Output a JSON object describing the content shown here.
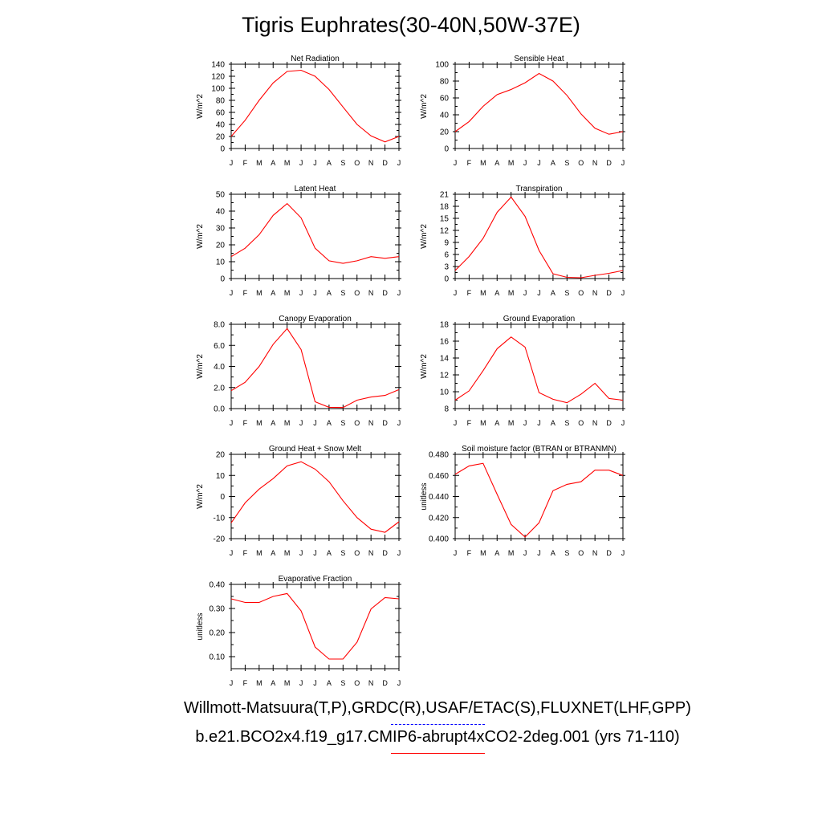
{
  "title": "Tigris Euphrates(30-40N,50W-37E)",
  "legend": {
    "observed_label": "Willmott-Matsuura(T,P),GRDC(R),USAF/ETAC(S),FLUXNET(LHF,GPP)",
    "observed_color": "#0000ff",
    "model_label": "b.e21.BCO2x4.f19_g17.CMIP6-abrupt4xCO2-2deg.001 (yrs 71-110)",
    "model_color": "#ff0000"
  },
  "chart_data": [
    {
      "type": "line",
      "title": "Net Radiation",
      "ylabel": "W/m^2",
      "categories": [
        "J",
        "F",
        "M",
        "A",
        "M",
        "J",
        "J",
        "A",
        "S",
        "O",
        "N",
        "D",
        "J"
      ],
      "ylim": [
        0,
        140
      ],
      "yticks": [
        "0",
        "20",
        "40",
        "60",
        "80",
        "100",
        "120",
        "140"
      ],
      "series": [
        {
          "values": [
            20,
            47,
            80,
            109,
            128,
            130,
            120,
            98,
            69,
            40,
            21,
            11,
            20
          ],
          "color": "#ff0000"
        }
      ]
    },
    {
      "type": "line",
      "title": "Sensible Heat",
      "ylabel": "W/m^2",
      "categories": [
        "J",
        "F",
        "M",
        "A",
        "M",
        "J",
        "J",
        "A",
        "S",
        "O",
        "N",
        "D",
        "J"
      ],
      "ylim": [
        0,
        100
      ],
      "yticks": [
        "0",
        "20",
        "40",
        "60",
        "80",
        "100"
      ],
      "series": [
        {
          "values": [
            20,
            32,
            50,
            64,
            70,
            78,
            89,
            80,
            63,
            41,
            24,
            17,
            20
          ],
          "color": "#ff0000"
        }
      ]
    },
    {
      "type": "line",
      "title": "Latent Heat",
      "ylabel": "W/m^2",
      "categories": [
        "J",
        "F",
        "M",
        "A",
        "M",
        "J",
        "J",
        "A",
        "S",
        "O",
        "N",
        "D",
        "J"
      ],
      "ylim": [
        0,
        50
      ],
      "yticks": [
        "0",
        "10",
        "20",
        "30",
        "40",
        "50"
      ],
      "series": [
        {
          "values": [
            13,
            18,
            26,
            37.5,
            44.5,
            36,
            18,
            10.5,
            9,
            10.5,
            13,
            12,
            13
          ],
          "color": "#ff0000"
        }
      ]
    },
    {
      "type": "line",
      "title": "Transpiration",
      "ylabel": "W/m^2",
      "categories": [
        "J",
        "F",
        "M",
        "A",
        "M",
        "J",
        "J",
        "A",
        "S",
        "O",
        "N",
        "D",
        "J"
      ],
      "ylim": [
        0,
        21
      ],
      "yticks": [
        "0",
        "3",
        "6",
        "9",
        "12",
        "15",
        "18",
        "21"
      ],
      "series": [
        {
          "values": [
            2,
            5.5,
            10,
            16.5,
            20.3,
            15.5,
            7,
            1.2,
            0.3,
            0.2,
            0.8,
            1.3,
            2
          ],
          "color": "#ff0000"
        }
      ]
    },
    {
      "type": "line",
      "title": "Canopy Evaporation",
      "ylabel": "W/m^2",
      "categories": [
        "J",
        "F",
        "M",
        "A",
        "M",
        "J",
        "J",
        "A",
        "S",
        "O",
        "N",
        "D",
        "J"
      ],
      "ylim": [
        0,
        8
      ],
      "yticks": [
        "0.0",
        "2.0",
        "4.0",
        "6.0",
        "8.0"
      ],
      "series": [
        {
          "values": [
            1.7,
            2.5,
            4.0,
            6.1,
            7.6,
            5.6,
            0.65,
            0.12,
            0.1,
            0.8,
            1.1,
            1.25,
            1.8
          ],
          "color": "#ff0000"
        }
      ]
    },
    {
      "type": "line",
      "title": "Ground Evaporation",
      "ylabel": "W/m^2",
      "categories": [
        "J",
        "F",
        "M",
        "A",
        "M",
        "J",
        "J",
        "A",
        "S",
        "O",
        "N",
        "D",
        "J"
      ],
      "ylim": [
        8,
        18
      ],
      "yticks": [
        "8",
        "10",
        "12",
        "14",
        "16",
        "18"
      ],
      "series": [
        {
          "values": [
            9,
            10.1,
            12.5,
            15.1,
            16.5,
            15.3,
            9.9,
            9.1,
            8.7,
            9.7,
            11.0,
            9.2,
            9.0
          ],
          "color": "#ff0000"
        }
      ]
    },
    {
      "type": "line",
      "title": "Ground Heat + Snow Melt",
      "ylabel": "W/m^2",
      "categories": [
        "J",
        "F",
        "M",
        "A",
        "M",
        "J",
        "J",
        "A",
        "S",
        "O",
        "N",
        "D",
        "J"
      ],
      "ylim": [
        -20,
        20
      ],
      "yticks": [
        "-20",
        "-10",
        "0",
        "10",
        "20"
      ],
      "series": [
        {
          "values": [
            -12.5,
            -3,
            3.5,
            8.5,
            14.5,
            16.5,
            13,
            7,
            -2,
            -10,
            -15.5,
            -17,
            -12
          ],
          "color": "#ff0000"
        }
      ]
    },
    {
      "type": "line",
      "title": "Soil moisture factor (BTRAN or BTRANMN)",
      "ylabel": "unitless",
      "categories": [
        "J",
        "F",
        "M",
        "A",
        "M",
        "J",
        "J",
        "A",
        "S",
        "O",
        "N",
        "D",
        "J"
      ],
      "ylim": [
        0.4,
        0.48
      ],
      "yticks": [
        "0.400",
        "0.420",
        "0.440",
        "0.460",
        "0.480"
      ],
      "series": [
        {
          "values": [
            0.461,
            0.469,
            0.4715,
            0.442,
            0.4135,
            0.4015,
            0.415,
            0.4455,
            0.4515,
            0.454,
            0.465,
            0.465,
            0.46
          ],
          "color": "#ff0000"
        }
      ]
    },
    {
      "type": "line",
      "title": "Evaporative Fraction",
      "ylabel": "unitless",
      "categories": [
        "J",
        "F",
        "M",
        "A",
        "M",
        "J",
        "J",
        "A",
        "S",
        "O",
        "N",
        "D",
        "J"
      ],
      "ylim": [
        0.05,
        0.4
      ],
      "yticks": [
        "0.10",
        "0.20",
        "0.30",
        "0.40"
      ],
      "series": [
        {
          "values": [
            0.34,
            0.325,
            0.325,
            0.35,
            0.362,
            0.29,
            0.14,
            0.09,
            0.09,
            0.16,
            0.298,
            0.345,
            0.34
          ],
          "color": "#ff0000"
        }
      ]
    }
  ]
}
